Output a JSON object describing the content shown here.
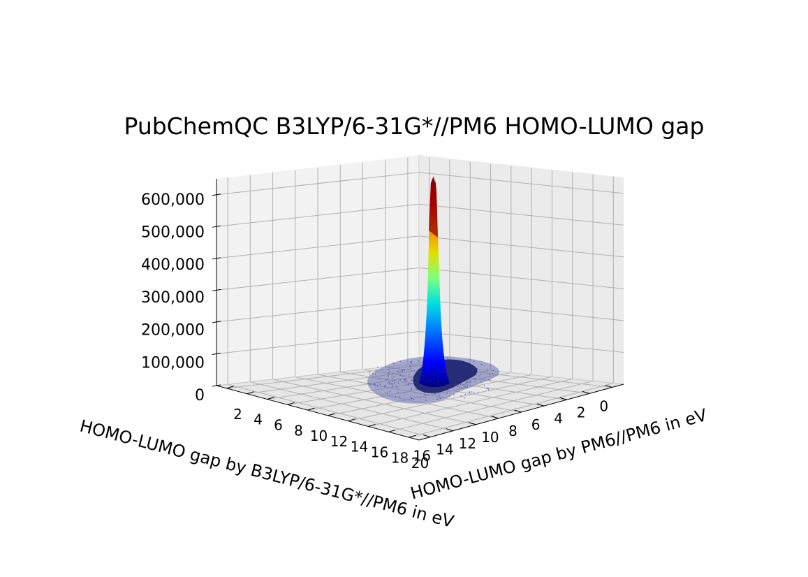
{
  "chart_data": {
    "type": "3d-bar-histogram",
    "title": "PubChemQC B3LYP/6-31G*//PM6 HOMO-LUMO gap",
    "xlabel": "HOMO-LUMO gap by B3LYP/6-31G*//PM6 in eV",
    "ylabel": "HOMO-LUMO gap by PM6//PM6 in eV",
    "zlabel": "",
    "x_ticks": [
      "2",
      "4",
      "6",
      "8",
      "10",
      "12",
      "14",
      "16",
      "18",
      "20"
    ],
    "y_ticks": [
      "16",
      "14",
      "12",
      "10",
      "8",
      "6",
      "4",
      "2",
      "0"
    ],
    "z_ticks": [
      "0",
      "100,000",
      "200,000",
      "300,000",
      "400,000",
      "500,000",
      "600,000"
    ],
    "xlim": [
      1,
      21
    ],
    "ylim": [
      17,
      -1
    ],
    "zlim": [
      0,
      650000
    ],
    "grid": true,
    "colormap": "jet",
    "peak": {
      "x": 4.5,
      "y": 8.5,
      "z": 640000
    }
  }
}
